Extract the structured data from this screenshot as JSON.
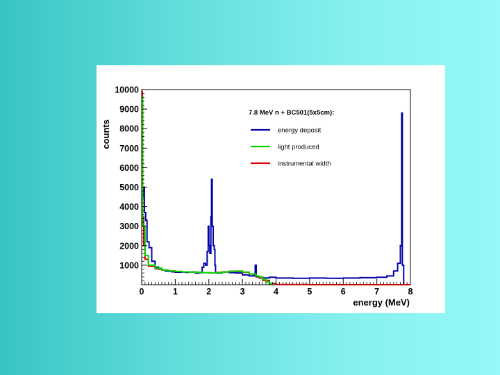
{
  "chart_data": {
    "type": "line",
    "title": "",
    "xlabel": "energy (MeV)",
    "ylabel": "counts",
    "xlim": [
      0,
      8
    ],
    "ylim": [
      0,
      10000
    ],
    "x_ticks": [
      "0",
      "1",
      "2",
      "3",
      "4",
      "5",
      "6",
      "7",
      "8"
    ],
    "y_ticks": [
      "1000",
      "2000",
      "3000",
      "4000",
      "5000",
      "6000",
      "7000",
      "8000",
      "9000",
      "10000"
    ],
    "grid": false,
    "legend_title": "7.8 MeV n + BC501(5x5cm):",
    "legend_position": "top-right",
    "series": [
      {
        "name": "energy deposit",
        "color": "#0000aa",
        "points": [
          [
            0.0,
            9800
          ],
          [
            0.02,
            4500
          ],
          [
            0.05,
            5000
          ],
          [
            0.08,
            3700
          ],
          [
            0.12,
            3300
          ],
          [
            0.16,
            2200
          ],
          [
            0.22,
            1900
          ],
          [
            0.3,
            1200
          ],
          [
            0.4,
            900
          ],
          [
            0.5,
            800
          ],
          [
            0.6,
            750
          ],
          [
            0.7,
            700
          ],
          [
            0.8,
            680
          ],
          [
            0.9,
            660
          ],
          [
            1.0,
            640
          ],
          [
            1.1,
            640
          ],
          [
            1.2,
            650
          ],
          [
            1.3,
            630
          ],
          [
            1.4,
            650
          ],
          [
            1.5,
            660
          ],
          [
            1.6,
            600
          ],
          [
            1.7,
            620
          ],
          [
            1.8,
            900
          ],
          [
            1.85,
            1100
          ],
          [
            1.9,
            1000
          ],
          [
            1.95,
            1700
          ],
          [
            1.98,
            3000
          ],
          [
            2.0,
            2000
          ],
          [
            2.03,
            1600
          ],
          [
            2.06,
            3500
          ],
          [
            2.08,
            5400
          ],
          [
            2.1,
            3000
          ],
          [
            2.13,
            2000
          ],
          [
            2.16,
            1800
          ],
          [
            2.18,
            1000
          ],
          [
            2.2,
            600
          ],
          [
            2.4,
            650
          ],
          [
            2.6,
            620
          ],
          [
            2.8,
            600
          ],
          [
            3.0,
            500
          ],
          [
            3.2,
            450
          ],
          [
            3.35,
            500
          ],
          [
            3.38,
            1000
          ],
          [
            3.41,
            400
          ],
          [
            3.6,
            350
          ],
          [
            3.8,
            380
          ],
          [
            4.0,
            340
          ],
          [
            4.5,
            330
          ],
          [
            5.0,
            340
          ],
          [
            5.5,
            330
          ],
          [
            6.0,
            340
          ],
          [
            6.5,
            360
          ],
          [
            7.0,
            380
          ],
          [
            7.3,
            450
          ],
          [
            7.5,
            700
          ],
          [
            7.62,
            1100
          ],
          [
            7.7,
            2000
          ],
          [
            7.74,
            8800
          ],
          [
            7.76,
            1000
          ],
          [
            7.8,
            0
          ]
        ]
      },
      {
        "name": "light produced",
        "color": "#00d800",
        "points": [
          [
            0.0,
            9600
          ],
          [
            0.03,
            3000
          ],
          [
            0.1,
            1500
          ],
          [
            0.2,
            1000
          ],
          [
            0.4,
            850
          ],
          [
            0.6,
            750
          ],
          [
            0.8,
            700
          ],
          [
            1.0,
            680
          ],
          [
            1.2,
            660
          ],
          [
            1.4,
            650
          ],
          [
            1.6,
            640
          ],
          [
            1.8,
            620
          ],
          [
            2.0,
            610
          ],
          [
            2.2,
            620
          ],
          [
            2.4,
            650
          ],
          [
            2.6,
            680
          ],
          [
            2.8,
            700
          ],
          [
            3.0,
            650
          ],
          [
            3.2,
            550
          ],
          [
            3.4,
            450
          ],
          [
            3.5,
            400
          ],
          [
            3.6,
            300
          ],
          [
            3.7,
            150
          ],
          [
            3.8,
            50
          ],
          [
            3.9,
            0
          ]
        ]
      },
      {
        "name": "instrumental width",
        "color": "#d80000",
        "points": [
          [
            0.0,
            9900
          ],
          [
            0.02,
            3500
          ],
          [
            0.06,
            2000
          ],
          [
            0.1,
            1300
          ],
          [
            0.2,
            950
          ],
          [
            0.4,
            820
          ],
          [
            0.6,
            750
          ],
          [
            0.8,
            700
          ],
          [
            1.0,
            680
          ],
          [
            1.2,
            660
          ],
          [
            1.4,
            650
          ],
          [
            1.6,
            640
          ],
          [
            1.8,
            620
          ],
          [
            2.0,
            610
          ],
          [
            2.2,
            630
          ],
          [
            2.4,
            660
          ],
          [
            2.6,
            690
          ],
          [
            2.8,
            680
          ],
          [
            3.0,
            630
          ],
          [
            3.2,
            540
          ],
          [
            3.4,
            420
          ],
          [
            3.5,
            340
          ],
          [
            3.6,
            220
          ],
          [
            3.8,
            60
          ],
          [
            4.0,
            10
          ],
          [
            5.0,
            0
          ],
          [
            8.0,
            0
          ]
        ]
      }
    ]
  }
}
